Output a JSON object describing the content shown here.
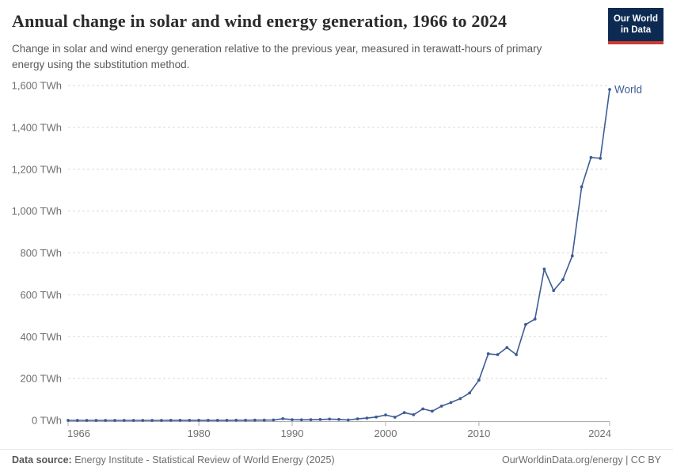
{
  "header": {
    "title": "Annual change in solar and wind energy generation, 1966 to 2024",
    "subtitle": "Change in solar and wind energy generation relative to the previous year, measured in terawatt-hours of primary energy using the substitution method.",
    "logo": {
      "line1": "Our World",
      "line2": "in Data",
      "bg": "#0d2b52",
      "accent": "#cc3b33"
    }
  },
  "footer": {
    "source_label": "Data source:",
    "source_text": "Energy Institute - Statistical Review of World Energy (2025)",
    "right_text": "OurWorldinData.org/energy | CC BY"
  },
  "theme": {
    "grid_color": "#d9d9d9",
    "axis_color": "#adadad",
    "tick_label_color": "#6e6e6e",
    "line_color": "#3d5c96"
  },
  "chart_data": {
    "type": "line",
    "title": "Annual change in solar and wind energy generation, 1966 to 2024",
    "xlabel": "",
    "ylabel": "",
    "unit": "TWh",
    "xlim": [
      1966,
      2024
    ],
    "ylim": [
      0,
      1600
    ],
    "x_ticks": [
      1966,
      1980,
      1990,
      2000,
      2010,
      2024
    ],
    "y_ticks": [
      0,
      200,
      400,
      600,
      800,
      1000,
      1200,
      1400,
      1600
    ],
    "y_tick_suffix": " TWh",
    "grid": "horizontal-dashed",
    "legend": "end-of-line-label",
    "series": [
      {
        "name": "World",
        "color": "#3d5c96",
        "x": [
          1966,
          1967,
          1968,
          1969,
          1970,
          1971,
          1972,
          1973,
          1974,
          1975,
          1976,
          1977,
          1978,
          1979,
          1980,
          1981,
          1982,
          1983,
          1984,
          1985,
          1986,
          1987,
          1988,
          1989,
          1990,
          1991,
          1992,
          1993,
          1994,
          1995,
          1996,
          1997,
          1998,
          1999,
          2000,
          2001,
          2002,
          2003,
          2004,
          2005,
          2006,
          2007,
          2008,
          2009,
          2010,
          2011,
          2012,
          2013,
          2014,
          2015,
          2016,
          2017,
          2018,
          2019,
          2020,
          2021,
          2022,
          2023,
          2024
        ],
        "values": [
          0,
          0,
          0,
          0,
          0.1,
          0.1,
          0.1,
          0.1,
          0.1,
          0.1,
          0.1,
          0.2,
          0.2,
          0.3,
          0.3,
          0.4,
          0.4,
          0.5,
          0.7,
          0.8,
          1.0,
          1.2,
          2.0,
          8.0,
          3.5,
          2.5,
          3.0,
          4.0,
          6.0,
          4.5,
          2.0,
          7.0,
          11.0,
          16.0,
          26.0,
          15.0,
          37.0,
          27.0,
          55.0,
          44.0,
          68.0,
          85.0,
          104.0,
          131.0,
          192.0,
          318.0,
          314.0,
          348.0,
          314.0,
          458.0,
          484.0,
          723.0,
          620.0,
          673.0,
          786.0,
          1116.0,
          1256.0,
          1252.0,
          1581.0
        ]
      }
    ]
  }
}
